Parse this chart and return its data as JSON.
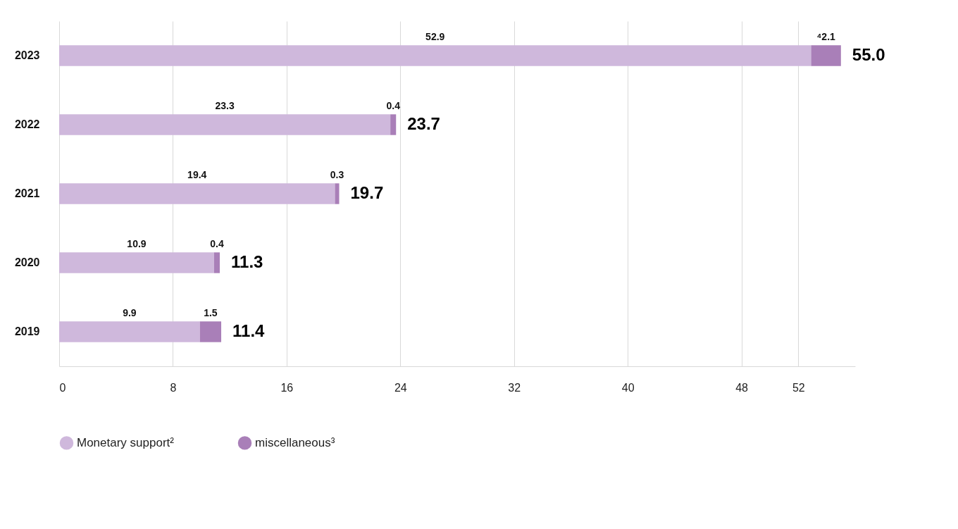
{
  "chart_data": {
    "type": "bar",
    "orientation": "horizontal",
    "stacked": true,
    "categories": [
      "2023",
      "2022",
      "2021",
      "2020",
      "2019"
    ],
    "series": [
      {
        "name": "Monetary support²",
        "color": "#cfb8dc",
        "values": [
          52.9,
          23.3,
          19.4,
          10.9,
          9.9
        ],
        "value_labels": [
          "52.9",
          "23.3",
          "19.4",
          "10.9",
          "9.9"
        ]
      },
      {
        "name": "miscellaneous³",
        "color": "#a97fb8",
        "values": [
          2.1,
          0.4,
          0.3,
          0.4,
          1.5
        ],
        "value_labels": [
          "⁴2.1",
          "0.4",
          "0.3",
          "0.4",
          "1.5"
        ]
      }
    ],
    "totals": [
      "55.0",
      "23.7",
      "19.7",
      "11.3",
      "11.4"
    ],
    "xlim": [
      0,
      56
    ],
    "xticks": [
      0,
      8,
      16,
      24,
      32,
      40,
      48,
      52
    ],
    "grid": "x",
    "legend": "bottom"
  }
}
